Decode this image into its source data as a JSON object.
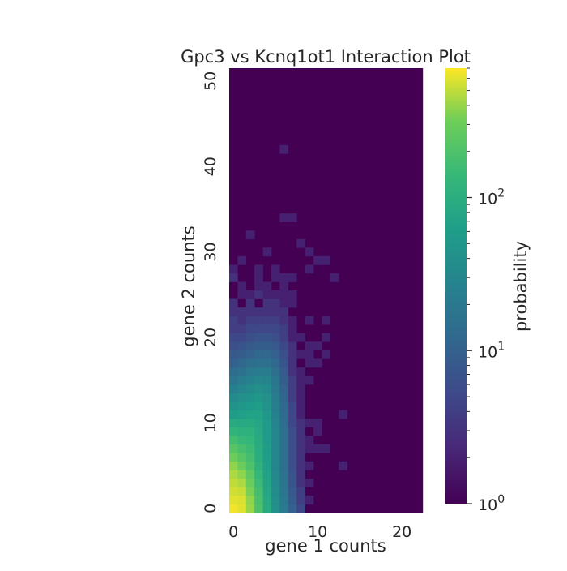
{
  "chart_data": {
    "type": "heatmap",
    "title": "Gpc3 vs Kcnq1ot1 Interaction Plot",
    "xlabel": "gene 1 counts",
    "ylabel": "gene 2 counts",
    "x_range": [
      0,
      22
    ],
    "y_range": [
      0,
      51
    ],
    "x_ticks": [
      0,
      10,
      20
    ],
    "y_ticks": [
      0,
      10,
      20,
      30,
      40,
      50
    ],
    "colorscale": "viridis",
    "color_scale_type": "log",
    "color_range": [
      1,
      700
    ],
    "colorbar": {
      "label": "probability",
      "ticks": [
        {
          "base": "10",
          "exp": "0",
          "value": 1
        },
        {
          "base": "10",
          "exp": "1",
          "value": 10
        },
        {
          "base": "10",
          "exp": "2",
          "value": 100
        }
      ]
    },
    "background_value": 1,
    "cells": [
      [
        0,
        0,
        650
      ],
      [
        0,
        1,
        600
      ],
      [
        0,
        2,
        550
      ],
      [
        0,
        3,
        500
      ],
      [
        0,
        4,
        450
      ],
      [
        0,
        5,
        380
      ],
      [
        0,
        6,
        300
      ],
      [
        0,
        7,
        230
      ],
      [
        0,
        8,
        170
      ],
      [
        0,
        9,
        120
      ],
      [
        0,
        10,
        90
      ],
      [
        0,
        11,
        60
      ],
      [
        0,
        12,
        45
      ],
      [
        0,
        13,
        35
      ],
      [
        0,
        14,
        25
      ],
      [
        0,
        15,
        18
      ],
      [
        0,
        16,
        14
      ],
      [
        0,
        17,
        10
      ],
      [
        0,
        18,
        8
      ],
      [
        0,
        19,
        6
      ],
      [
        0,
        20,
        5
      ],
      [
        0,
        21,
        4
      ],
      [
        0,
        22,
        4
      ],
      [
        0,
        23,
        3
      ],
      [
        0,
        24,
        3
      ],
      [
        0,
        27,
        3
      ],
      [
        0,
        28,
        2
      ],
      [
        1,
        0,
        600
      ],
      [
        1,
        1,
        580
      ],
      [
        1,
        2,
        520
      ],
      [
        1,
        3,
        450
      ],
      [
        1,
        4,
        380
      ],
      [
        1,
        5,
        300
      ],
      [
        1,
        6,
        230
      ],
      [
        1,
        7,
        180
      ],
      [
        1,
        8,
        140
      ],
      [
        1,
        9,
        110
      ],
      [
        1,
        10,
        85
      ],
      [
        1,
        11,
        65
      ],
      [
        1,
        12,
        50
      ],
      [
        1,
        13,
        40
      ],
      [
        1,
        14,
        30
      ],
      [
        1,
        15,
        22
      ],
      [
        1,
        16,
        16
      ],
      [
        1,
        17,
        12
      ],
      [
        1,
        18,
        9
      ],
      [
        1,
        19,
        7
      ],
      [
        1,
        20,
        5
      ],
      [
        1,
        21,
        4
      ],
      [
        1,
        22,
        3
      ],
      [
        1,
        23,
        3
      ],
      [
        1,
        25,
        2
      ],
      [
        1,
        26,
        2
      ],
      [
        1,
        29,
        2
      ],
      [
        2,
        0,
        400
      ],
      [
        2,
        1,
        380
      ],
      [
        2,
        2,
        340
      ],
      [
        2,
        3,
        300
      ],
      [
        2,
        4,
        260
      ],
      [
        2,
        5,
        200
      ],
      [
        2,
        6,
        170
      ],
      [
        2,
        7,
        150
      ],
      [
        2,
        8,
        130
      ],
      [
        2,
        9,
        110
      ],
      [
        2,
        10,
        90
      ],
      [
        2,
        11,
        70
      ],
      [
        2,
        12,
        55
      ],
      [
        2,
        13,
        45
      ],
      [
        2,
        14,
        35
      ],
      [
        2,
        15,
        25
      ],
      [
        2,
        16,
        20
      ],
      [
        2,
        17,
        15
      ],
      [
        2,
        18,
        10
      ],
      [
        2,
        19,
        8
      ],
      [
        2,
        20,
        6
      ],
      [
        2,
        21,
        5
      ],
      [
        2,
        22,
        4
      ],
      [
        2,
        23,
        3
      ],
      [
        2,
        24,
        3
      ],
      [
        2,
        25,
        2
      ],
      [
        2,
        32,
        2
      ],
      [
        3,
        0,
        200
      ],
      [
        3,
        1,
        190
      ],
      [
        3,
        2,
        170
      ],
      [
        3,
        3,
        150
      ],
      [
        3,
        4,
        130
      ],
      [
        3,
        5,
        110
      ],
      [
        3,
        6,
        100
      ],
      [
        3,
        7,
        95
      ],
      [
        3,
        8,
        90
      ],
      [
        3,
        9,
        85
      ],
      [
        3,
        10,
        80
      ],
      [
        3,
        11,
        70
      ],
      [
        3,
        12,
        60
      ],
      [
        3,
        13,
        50
      ],
      [
        3,
        14,
        40
      ],
      [
        3,
        15,
        30
      ],
      [
        3,
        16,
        22
      ],
      [
        3,
        17,
        16
      ],
      [
        3,
        18,
        12
      ],
      [
        3,
        19,
        9
      ],
      [
        3,
        20,
        7
      ],
      [
        3,
        21,
        5
      ],
      [
        3,
        22,
        4
      ],
      [
        3,
        23,
        3
      ],
      [
        3,
        25,
        3
      ],
      [
        3,
        26,
        2
      ],
      [
        3,
        27,
        2
      ],
      [
        3,
        28,
        2
      ],
      [
        4,
        0,
        90
      ],
      [
        4,
        1,
        85
      ],
      [
        4,
        2,
        80
      ],
      [
        4,
        3,
        75
      ],
      [
        4,
        4,
        70
      ],
      [
        4,
        5,
        65
      ],
      [
        4,
        6,
        60
      ],
      [
        4,
        7,
        58
      ],
      [
        4,
        8,
        55
      ],
      [
        4,
        9,
        55
      ],
      [
        4,
        10,
        55
      ],
      [
        4,
        11,
        50
      ],
      [
        4,
        12,
        45
      ],
      [
        4,
        13,
        40
      ],
      [
        4,
        14,
        35
      ],
      [
        4,
        15,
        28
      ],
      [
        4,
        16,
        22
      ],
      [
        4,
        17,
        16
      ],
      [
        4,
        18,
        12
      ],
      [
        4,
        19,
        9
      ],
      [
        4,
        20,
        7
      ],
      [
        4,
        21,
        5
      ],
      [
        4,
        22,
        4
      ],
      [
        4,
        23,
        3
      ],
      [
        4,
        24,
        3
      ],
      [
        4,
        25,
        2
      ],
      [
        4,
        26,
        2
      ],
      [
        4,
        30,
        2
      ],
      [
        5,
        0,
        40
      ],
      [
        5,
        1,
        38
      ],
      [
        5,
        2,
        36
      ],
      [
        5,
        3,
        34
      ],
      [
        5,
        4,
        32
      ],
      [
        5,
        5,
        30
      ],
      [
        5,
        6,
        30
      ],
      [
        5,
        7,
        30
      ],
      [
        5,
        8,
        30
      ],
      [
        5,
        9,
        30
      ],
      [
        5,
        10,
        28
      ],
      [
        5,
        11,
        26
      ],
      [
        5,
        12,
        24
      ],
      [
        5,
        13,
        22
      ],
      [
        5,
        14,
        20
      ],
      [
        5,
        15,
        18
      ],
      [
        5,
        16,
        15
      ],
      [
        5,
        17,
        12
      ],
      [
        5,
        18,
        10
      ],
      [
        5,
        19,
        8
      ],
      [
        5,
        20,
        6
      ],
      [
        5,
        21,
        5
      ],
      [
        5,
        22,
        4
      ],
      [
        5,
        23,
        3
      ],
      [
        5,
        24,
        3
      ],
      [
        5,
        25,
        2
      ],
      [
        5,
        27,
        2
      ],
      [
        5,
        28,
        2
      ],
      [
        6,
        0,
        20
      ],
      [
        6,
        1,
        19
      ],
      [
        6,
        2,
        18
      ],
      [
        6,
        3,
        17
      ],
      [
        6,
        4,
        16
      ],
      [
        6,
        5,
        15
      ],
      [
        6,
        6,
        15
      ],
      [
        6,
        7,
        15
      ],
      [
        6,
        8,
        15
      ],
      [
        6,
        9,
        15
      ],
      [
        6,
        10,
        14
      ],
      [
        6,
        11,
        13
      ],
      [
        6,
        12,
        12
      ],
      [
        6,
        13,
        11
      ],
      [
        6,
        14,
        10
      ],
      [
        6,
        15,
        9
      ],
      [
        6,
        16,
        8
      ],
      [
        6,
        17,
        7
      ],
      [
        6,
        18,
        6
      ],
      [
        6,
        19,
        5
      ],
      [
        6,
        20,
        4
      ],
      [
        6,
        21,
        4
      ],
      [
        6,
        22,
        3
      ],
      [
        6,
        23,
        3
      ],
      [
        6,
        24,
        2
      ],
      [
        6,
        25,
        2
      ],
      [
        6,
        26,
        2
      ],
      [
        6,
        27,
        2
      ],
      [
        6,
        34,
        2
      ],
      [
        6,
        42,
        2
      ],
      [
        7,
        0,
        10
      ],
      [
        7,
        1,
        9
      ],
      [
        7,
        2,
        8
      ],
      [
        7,
        3,
        7
      ],
      [
        7,
        4,
        7
      ],
      [
        7,
        5,
        6
      ],
      [
        7,
        6,
        6
      ],
      [
        7,
        7,
        6
      ],
      [
        7,
        8,
        6
      ],
      [
        7,
        9,
        6
      ],
      [
        7,
        10,
        5
      ],
      [
        7,
        11,
        5
      ],
      [
        7,
        12,
        5
      ],
      [
        7,
        13,
        4
      ],
      [
        7,
        14,
        4
      ],
      [
        7,
        15,
        4
      ],
      [
        7,
        16,
        3
      ],
      [
        7,
        17,
        3
      ],
      [
        7,
        18,
        3
      ],
      [
        7,
        19,
        3
      ],
      [
        7,
        20,
        2
      ],
      [
        7,
        21,
        2
      ],
      [
        7,
        22,
        2
      ],
      [
        7,
        24,
        2
      ],
      [
        7,
        25,
        2
      ],
      [
        7,
        27,
        2
      ],
      [
        7,
        34,
        2
      ],
      [
        8,
        0,
        5
      ],
      [
        8,
        1,
        4
      ],
      [
        8,
        2,
        4
      ],
      [
        8,
        3,
        3
      ],
      [
        8,
        4,
        3
      ],
      [
        8,
        5,
        3
      ],
      [
        8,
        6,
        3
      ],
      [
        8,
        7,
        3
      ],
      [
        8,
        8,
        3
      ],
      [
        8,
        9,
        3
      ],
      [
        8,
        10,
        3
      ],
      [
        8,
        11,
        2
      ],
      [
        8,
        12,
        2
      ],
      [
        8,
        13,
        2
      ],
      [
        8,
        14,
        2
      ],
      [
        8,
        15,
        2
      ],
      [
        8,
        16,
        2
      ],
      [
        8,
        18,
        2
      ],
      [
        8,
        20,
        2
      ],
      [
        8,
        31,
        2
      ],
      [
        9,
        1,
        2
      ],
      [
        9,
        3,
        2
      ],
      [
        9,
        5,
        2
      ],
      [
        9,
        7,
        2
      ],
      [
        9,
        8,
        2
      ],
      [
        9,
        10,
        2
      ],
      [
        9,
        15,
        2
      ],
      [
        9,
        17,
        2
      ],
      [
        9,
        18,
        2
      ],
      [
        9,
        19,
        2
      ],
      [
        9,
        22,
        2
      ],
      [
        9,
        28,
        2
      ],
      [
        9,
        30,
        2
      ],
      [
        10,
        7,
        2
      ],
      [
        10,
        9,
        2
      ],
      [
        10,
        10,
        2
      ],
      [
        10,
        17,
        2
      ],
      [
        10,
        19,
        2
      ],
      [
        10,
        29,
        2
      ],
      [
        11,
        7,
        2
      ],
      [
        11,
        18,
        2
      ],
      [
        11,
        20,
        2
      ],
      [
        11,
        22,
        2
      ],
      [
        11,
        29,
        2
      ],
      [
        12,
        27,
        2
      ],
      [
        13,
        5,
        2
      ],
      [
        13,
        11,
        2
      ]
    ]
  }
}
